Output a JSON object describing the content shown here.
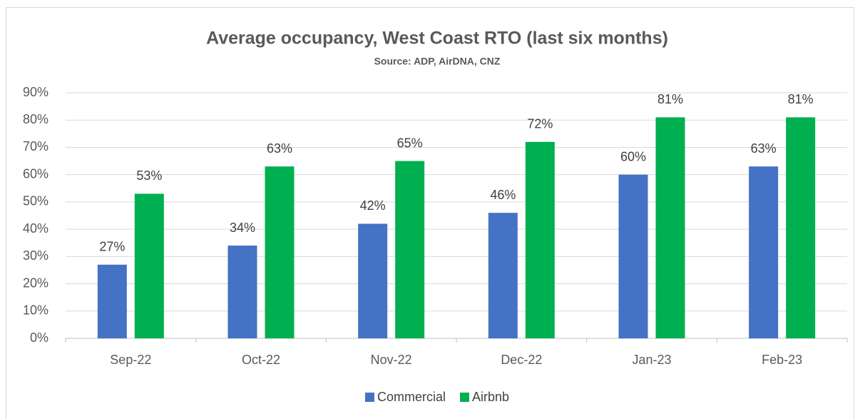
{
  "chart_data": {
    "type": "bar",
    "title": "Average occupancy, West Coast RTO (last six months)",
    "subtitle": "Source: ADP, AirDNA, CNZ",
    "categories": [
      "Sep-22",
      "Oct-22",
      "Nov-22",
      "Dec-22",
      "Jan-23",
      "Feb-23"
    ],
    "series": [
      {
        "name": "Commercial",
        "color": "#4472c4",
        "values": [
          27,
          34,
          42,
          46,
          60,
          63
        ],
        "value_labels": [
          "27%",
          "34%",
          "42%",
          "46%",
          "60%",
          "63%"
        ]
      },
      {
        "name": "Airbnb",
        "color": "#00b050",
        "values": [
          53,
          63,
          65,
          72,
          81,
          81
        ],
        "value_labels": [
          "53%",
          "63%",
          "65%",
          "72%",
          "81%",
          "81%"
        ]
      }
    ],
    "ylim": [
      0,
      90
    ],
    "yticks": [
      {
        "value": 0,
        "label": "0%"
      },
      {
        "value": 10,
        "label": "10%"
      },
      {
        "value": 20,
        "label": "20%"
      },
      {
        "value": 30,
        "label": "30%"
      },
      {
        "value": 40,
        "label": "40%"
      },
      {
        "value": 50,
        "label": "50%"
      },
      {
        "value": 60,
        "label": "60%"
      },
      {
        "value": 70,
        "label": "70%"
      },
      {
        "value": 80,
        "label": "80%"
      },
      {
        "value": 90,
        "label": "90%"
      }
    ],
    "grid": true,
    "legend": "bottom"
  }
}
